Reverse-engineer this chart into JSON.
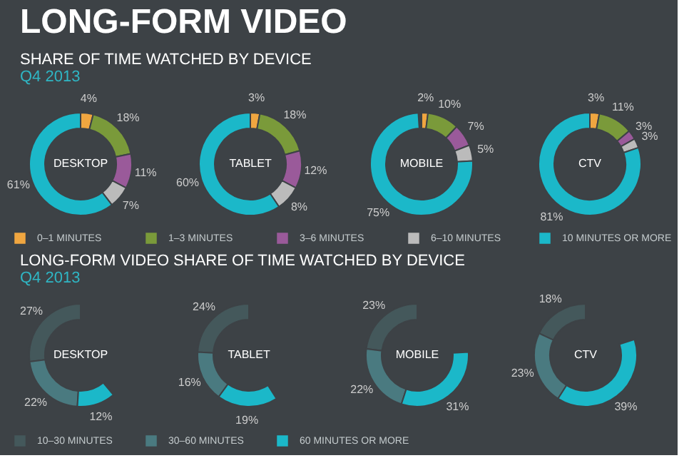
{
  "chart_data": [
    {
      "type": "other",
      "title": "LONG-FORM VIDEO"
    },
    {
      "type": "other",
      "title": "SHARE OF TIME WATCHED BY DEVICE",
      "subtitle": "Q4 2013"
    },
    {
      "type": "donut",
      "title": "DESKTOP",
      "categories": [
        "0–1 MINUTES",
        "1–3 MINUTES",
        "3–6 MINUTES",
        "6–10 MINUTES",
        "10 MINUTES OR MORE"
      ],
      "values": [
        4,
        18,
        11,
        7,
        61
      ],
      "value_labels": [
        "4%",
        "18%",
        "11%",
        "7%",
        "61%"
      ],
      "colors": [
        "#f0a640",
        "#7a9a3a",
        "#9a5a9a",
        "#bbbbbb",
        "#1bb8c9"
      ],
      "legend": "bottom"
    },
    {
      "type": "donut",
      "title": "TABLET",
      "categories": [
        null,
        null,
        null,
        null,
        null
      ],
      "values": [
        3,
        18,
        12,
        8,
        60
      ],
      "value_labels": [
        "3%",
        "18%",
        "12%",
        "8%",
        "60%"
      ],
      "colors": [
        "#f0a640",
        "#7a9a3a",
        "#9a5a9a",
        "#bbbbbb",
        "#1bb8c9"
      ]
    },
    {
      "type": "donut",
      "title": "MOBILE",
      "categories": [
        null,
        null,
        null,
        null,
        null
      ],
      "values": [
        2,
        10,
        7,
        5,
        75
      ],
      "value_labels": [
        "2%",
        "10%",
        "7%",
        "5%",
        "75%"
      ],
      "colors": [
        "#f0a640",
        "#7a9a3a",
        "#9a5a9a",
        "#bbbbbb",
        "#1bb8c9"
      ]
    },
    {
      "type": "donut",
      "title": "CTV",
      "categories": [
        null,
        null,
        null,
        null,
        null
      ],
      "values": [
        3,
        11,
        3,
        3,
        81
      ],
      "value_labels": [
        "3%",
        "11%",
        "3%",
        "3%",
        "81%"
      ],
      "colors": [
        "#f0a640",
        "#7a9a3a",
        "#9a5a9a",
        "#bbbbbb",
        "#1bb8c9"
      ]
    },
    {
      "type": "other",
      "title": "LONG-FORM VIDEO SHARE OF TIME WATCHED BY DEVICE",
      "subtitle": "Q4 2013"
    },
    {
      "type": "donut",
      "title": "DESKTOP",
      "categories": [
        "10–30 MINUTES",
        "30–60 MINUTES",
        "60 MINUTES OR MORE"
      ],
      "values": [
        27,
        22,
        12
      ],
      "value_labels": [
        "27%",
        "22%",
        "12%"
      ],
      "colors": [
        "#44585b",
        "#4a7a80",
        "#1bb8c9"
      ],
      "legend": "bottom"
    },
    {
      "type": "donut",
      "title": "TABLET",
      "categories": [
        null,
        null,
        null
      ],
      "values": [
        24,
        16,
        19
      ],
      "value_labels": [
        "24%",
        "16%",
        "19%"
      ],
      "colors": [
        "#44585b",
        "#4a7a80",
        "#1bb8c9"
      ]
    },
    {
      "type": "donut",
      "title": "MOBILE",
      "categories": [
        null,
        null,
        null
      ],
      "values": [
        23,
        22,
        31
      ],
      "value_labels": [
        "23%",
        "22%",
        "31%"
      ],
      "colors": [
        "#44585b",
        "#4a7a80",
        "#1bb8c9"
      ]
    },
    {
      "type": "donut",
      "title": "CTV",
      "categories": [
        null,
        null,
        null
      ],
      "values": [
        18,
        23,
        39
      ],
      "value_labels": [
        "18%",
        "23%",
        "39%"
      ],
      "colors": [
        "#44585b",
        "#4a7a80",
        "#1bb8c9"
      ]
    }
  ]
}
